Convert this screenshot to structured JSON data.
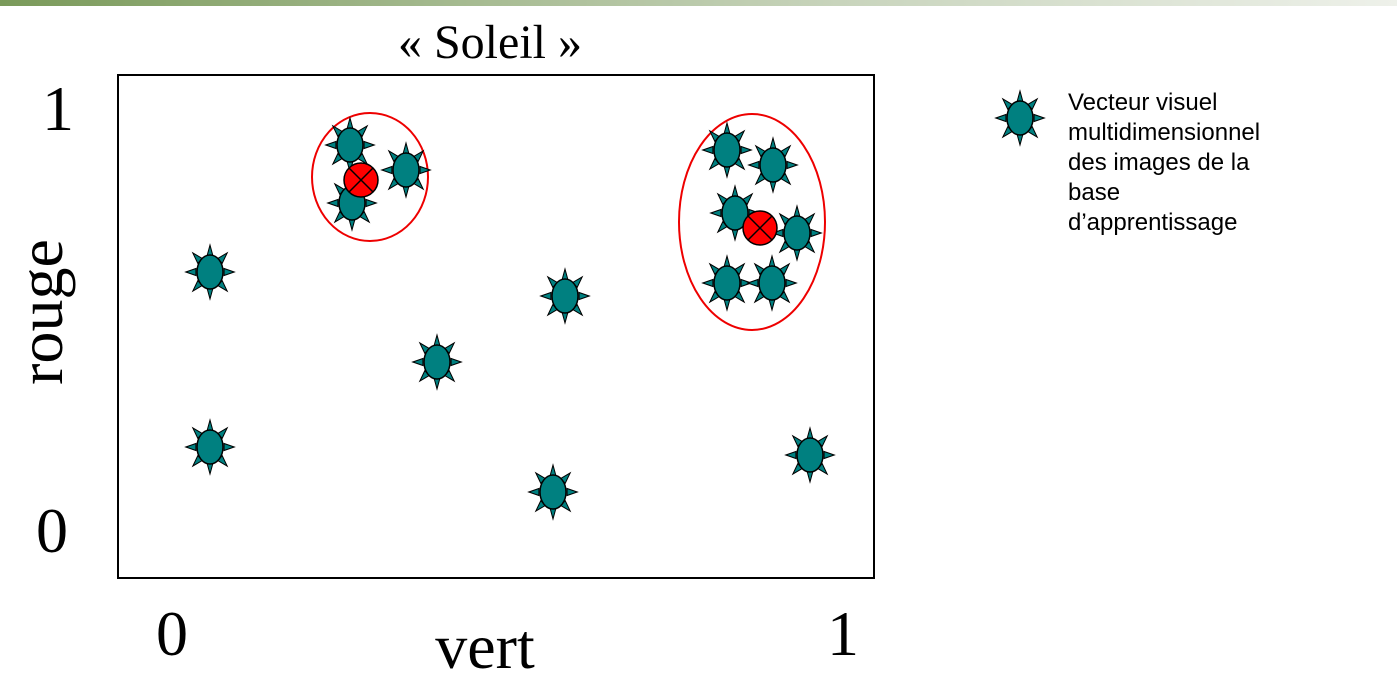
{
  "title": "« Soleil »",
  "y_axis": {
    "label": "rouge",
    "min_label": "0",
    "max_label": "1"
  },
  "x_axis": {
    "label": "vert",
    "min_label": "0",
    "max_label": "1"
  },
  "legend": {
    "lines": [
      "Vecteur visuel",
      "multidimensionnel",
      "des images de la",
      "base",
      "d’apprentissage"
    ]
  }
}
